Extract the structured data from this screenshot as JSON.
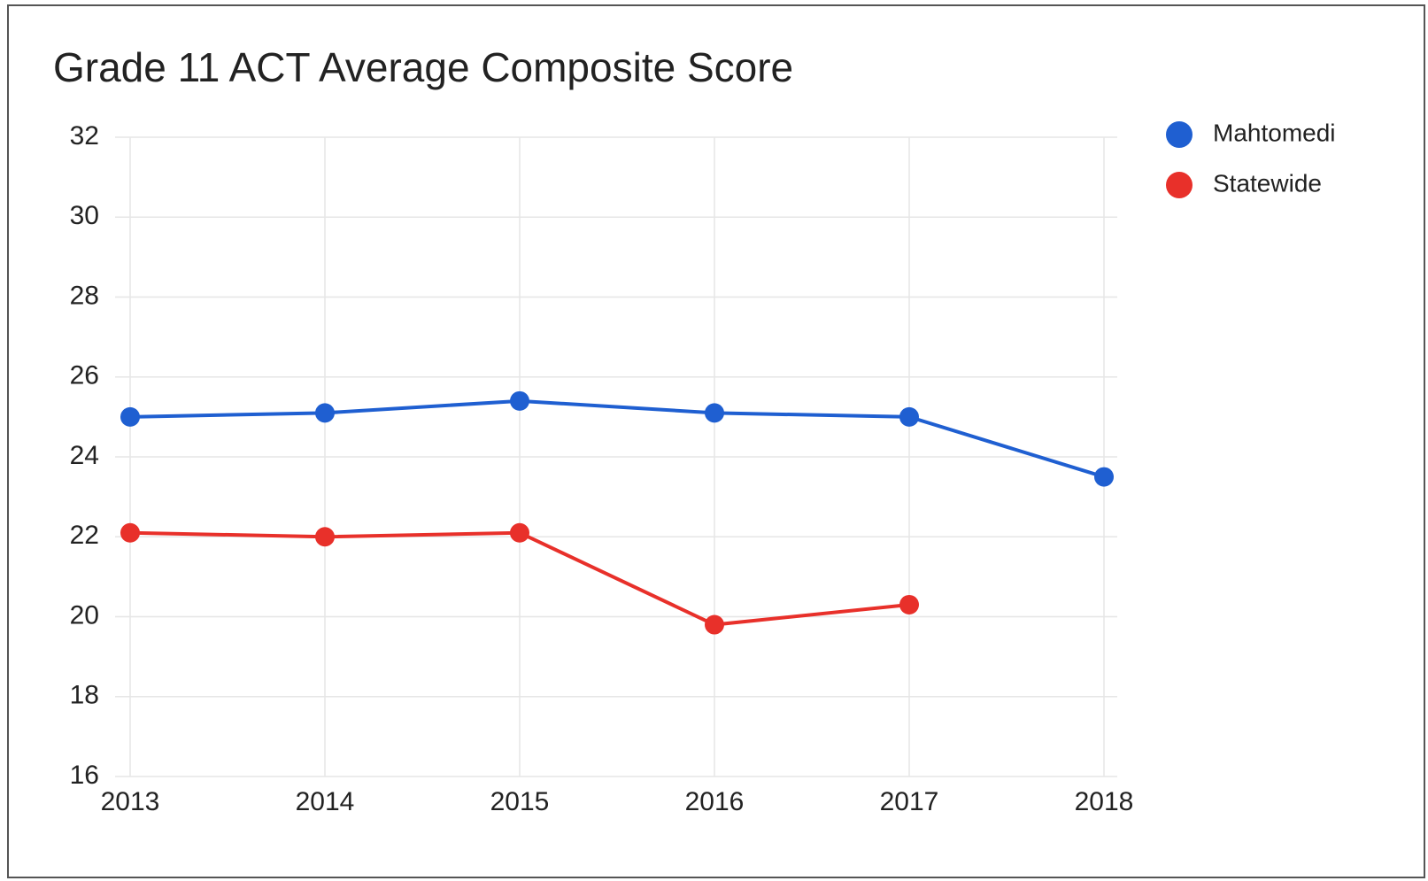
{
  "chart_data": {
    "type": "line",
    "title": "Grade 11 ACT Average Composite Score",
    "categories": [
      "2013",
      "2014",
      "2015",
      "2016",
      "2017",
      "2018"
    ],
    "series": [
      {
        "name": "Mahtomedi",
        "color": "#1f5fd1",
        "values": [
          25.0,
          25.1,
          25.4,
          25.1,
          25.0,
          23.5
        ]
      },
      {
        "name": "Statewide",
        "color": "#e8302a",
        "values": [
          22.1,
          22.0,
          22.1,
          19.8,
          20.3,
          null
        ]
      }
    ],
    "ylim": [
      16,
      32
    ],
    "yticks": [
      16,
      18,
      20,
      22,
      24,
      26,
      28,
      30,
      32
    ],
    "grid": true,
    "legend": "right"
  }
}
